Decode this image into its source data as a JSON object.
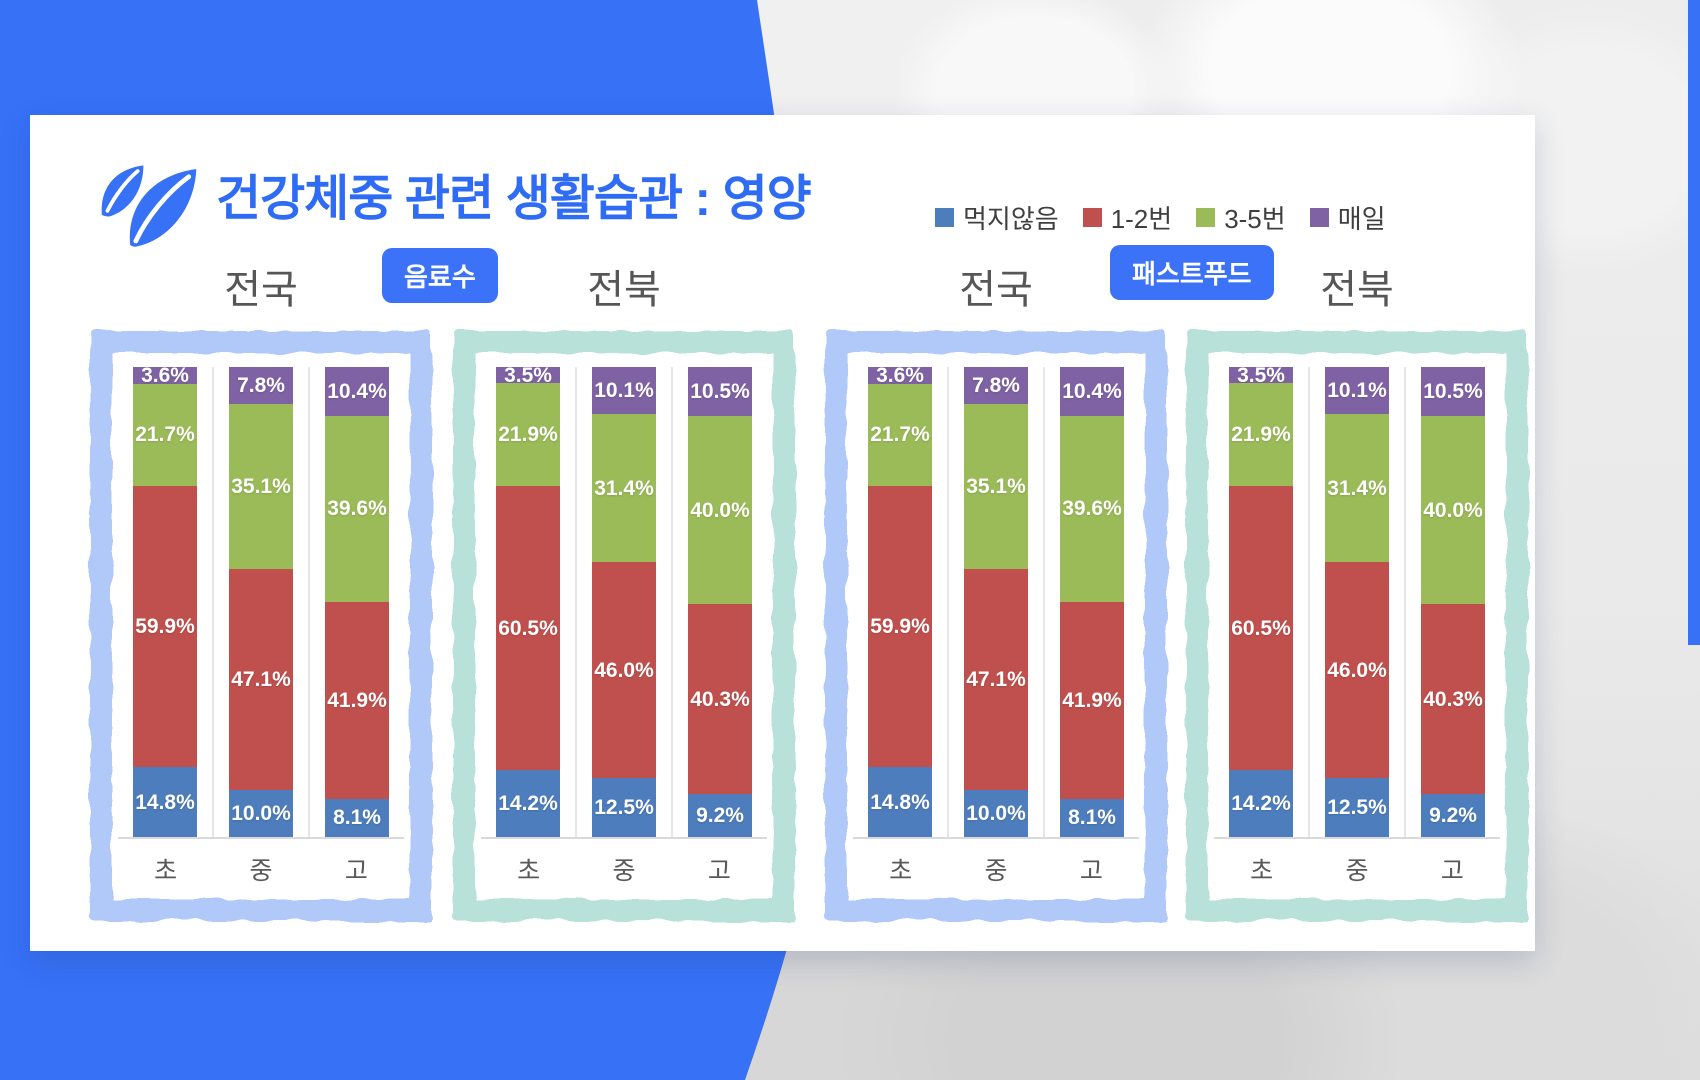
{
  "title": "건강체중 관련 생활습관 : 영양",
  "legend": {
    "items": [
      {
        "label": "먹지않음",
        "color": "#4d7dbc"
      },
      {
        "label": "1-2번",
        "color": "#c0504d"
      },
      {
        "label": "3-5번",
        "color": "#9bbb59"
      },
      {
        "label": "매일",
        "color": "#7e62a4"
      }
    ]
  },
  "groups": [
    {
      "badge": "음료수"
    },
    {
      "badge": "패스트푸드"
    }
  ],
  "colors": {
    "accent_blue": "#3671f6",
    "title_blue": "#2f6cf5",
    "frame_blue": "#b0c9f9",
    "frame_teal": "#b7e1d9",
    "chart_title_gray": "#565656"
  },
  "chart_data": [
    {
      "type": "bar",
      "stacked": true,
      "group": "음료수",
      "title": "전국",
      "frame": "blue",
      "categories": [
        "초",
        "중",
        "고"
      ],
      "ylim": [
        0,
        100
      ],
      "value_format": "percent_1dp",
      "grid": false,
      "legend_position": "top-right",
      "series": [
        {
          "name": "먹지않음",
          "color": "#4d7dbc",
          "values": [
            14.8,
            10.0,
            8.1
          ]
        },
        {
          "name": "1-2번",
          "color": "#c0504d",
          "values": [
            59.9,
            47.1,
            41.9
          ]
        },
        {
          "name": "3-5번",
          "color": "#9bbb59",
          "values": [
            21.7,
            35.1,
            39.6
          ]
        },
        {
          "name": "매일",
          "color": "#7e62a4",
          "values": [
            3.6,
            7.8,
            10.4
          ]
        }
      ]
    },
    {
      "type": "bar",
      "stacked": true,
      "group": "음료수",
      "title": "전북",
      "frame": "teal",
      "categories": [
        "초",
        "중",
        "고"
      ],
      "ylim": [
        0,
        100
      ],
      "value_format": "percent_1dp",
      "grid": false,
      "legend_position": "top-right",
      "series": [
        {
          "name": "먹지않음",
          "color": "#4d7dbc",
          "values": [
            14.2,
            12.5,
            9.2
          ]
        },
        {
          "name": "1-2번",
          "color": "#c0504d",
          "values": [
            60.5,
            46.0,
            40.3
          ]
        },
        {
          "name": "3-5번",
          "color": "#9bbb59",
          "values": [
            21.9,
            31.4,
            40.0
          ]
        },
        {
          "name": "매일",
          "color": "#7e62a4",
          "values": [
            3.5,
            10.1,
            10.5
          ]
        }
      ]
    },
    {
      "type": "bar",
      "stacked": true,
      "group": "패스트푸드",
      "title": "전국",
      "frame": "blue",
      "categories": [
        "초",
        "중",
        "고"
      ],
      "ylim": [
        0,
        100
      ],
      "value_format": "percent_1dp",
      "grid": false,
      "legend_position": "top-right",
      "series": [
        {
          "name": "먹지않음",
          "color": "#4d7dbc",
          "values": [
            14.8,
            10.0,
            8.1
          ]
        },
        {
          "name": "1-2번",
          "color": "#c0504d",
          "values": [
            59.9,
            47.1,
            41.9
          ]
        },
        {
          "name": "3-5번",
          "color": "#9bbb59",
          "values": [
            21.7,
            35.1,
            39.6
          ]
        },
        {
          "name": "매일",
          "color": "#7e62a4",
          "values": [
            3.6,
            7.8,
            10.4
          ]
        }
      ]
    },
    {
      "type": "bar",
      "stacked": true,
      "group": "패스트푸드",
      "title": "전북",
      "frame": "teal",
      "categories": [
        "초",
        "중",
        "고"
      ],
      "ylim": [
        0,
        100
      ],
      "value_format": "percent_1dp",
      "grid": false,
      "legend_position": "top-right",
      "series": [
        {
          "name": "먹지않음",
          "color": "#4d7dbc",
          "values": [
            14.2,
            12.5,
            9.2
          ]
        },
        {
          "name": "1-2번",
          "color": "#c0504d",
          "values": [
            60.5,
            46.0,
            40.3
          ]
        },
        {
          "name": "3-5번",
          "color": "#9bbb59",
          "values": [
            21.9,
            31.4,
            40.0
          ]
        },
        {
          "name": "매일",
          "color": "#7e62a4",
          "values": [
            3.5,
            10.1,
            10.5
          ]
        }
      ]
    }
  ]
}
